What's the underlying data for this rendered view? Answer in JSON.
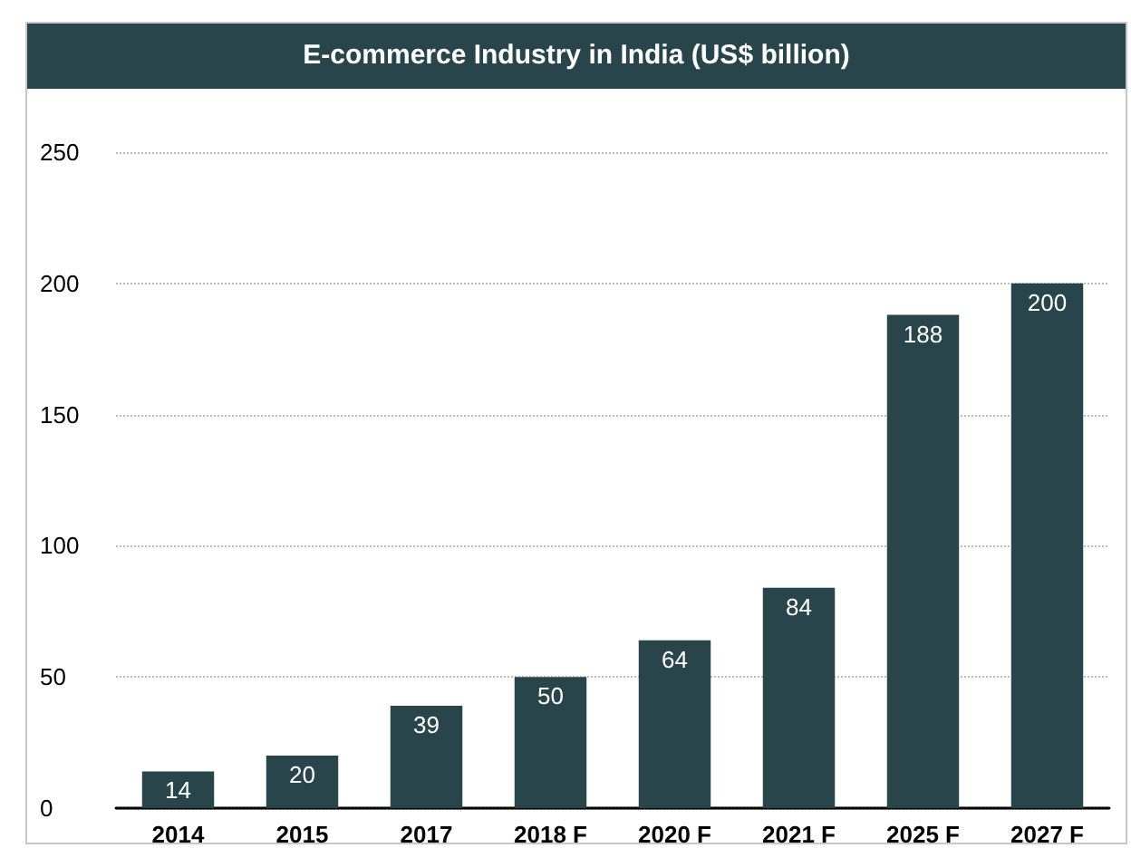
{
  "chart_data": {
    "type": "bar",
    "title": "E-commerce Industry in India (US$ billion)",
    "categories": [
      "2014",
      "2015",
      "2017",
      "2018 F",
      "2020 F",
      "2021 F",
      "2025 F",
      "2027 F"
    ],
    "values": [
      14,
      20,
      39,
      50,
      64,
      84,
      188,
      200
    ],
    "color": "#29454c",
    "ylim": [
      0,
      250
    ],
    "yticks": [
      0,
      50,
      100,
      150,
      200,
      250
    ],
    "grid": "y",
    "data_labels": true
  }
}
